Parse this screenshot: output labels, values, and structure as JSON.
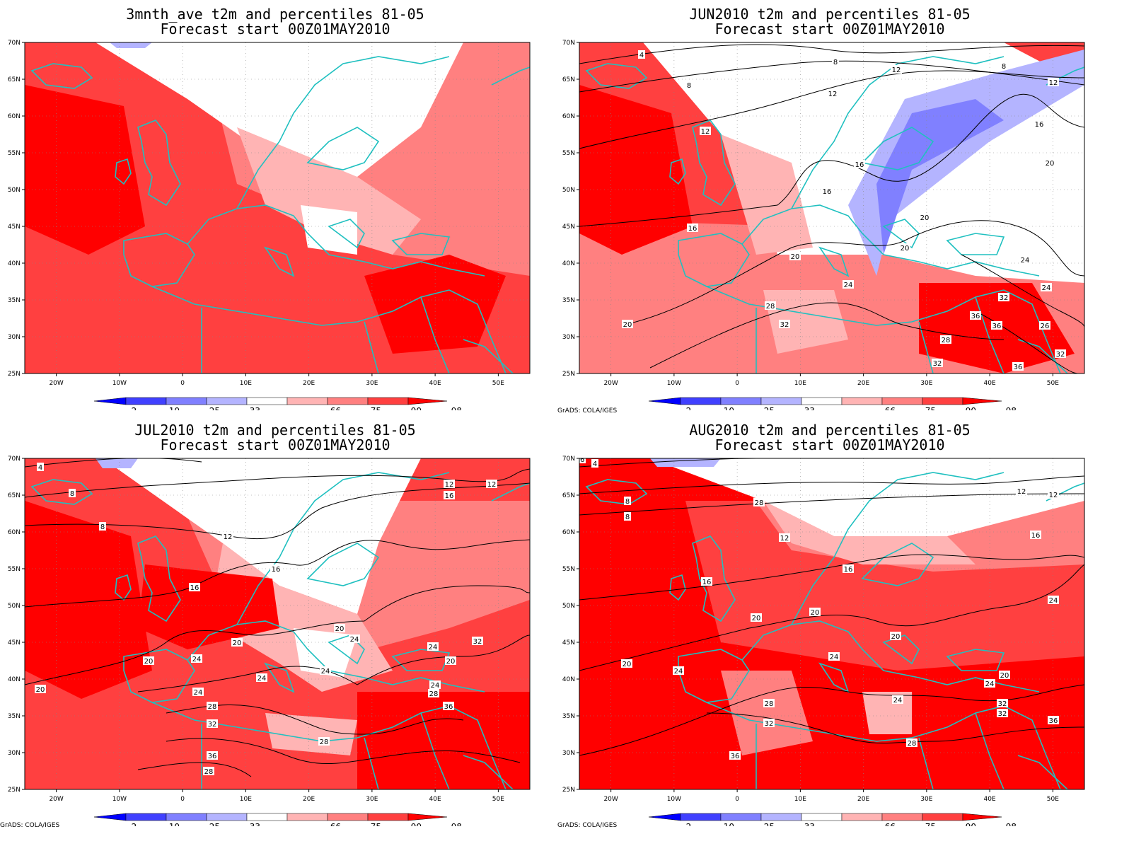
{
  "panels": [
    {
      "id": "p1",
      "title_line1": "3mnth_ave t2m and percentiles 81-05",
      "title_line2": "Forecast start 00Z01MAY2010",
      "credit": "",
      "has_contours": false
    },
    {
      "id": "p2",
      "title_line1": "JUN2010 t2m and percentiles 81-05",
      "title_line2": "Forecast start 00Z01MAY2010",
      "credit": "GrADS: COLA/IGES",
      "has_contours": true,
      "contour_labels": [
        "4",
        "8",
        "8",
        "8",
        "12",
        "12",
        "12",
        "12",
        "16",
        "16",
        "16",
        "16",
        "20",
        "20",
        "20",
        "20",
        "20",
        "24",
        "24",
        "24",
        "28",
        "28",
        "26",
        "32",
        "32",
        "32",
        "32",
        "36",
        "36",
        "36"
      ]
    },
    {
      "id": "p3",
      "title_line1": "JUL2010 t2m and percentiles 81-05",
      "title_line2": "Forecast start 00Z01MAY2010",
      "credit": "GrADS: COLA/IGES",
      "has_contours": true,
      "contour_labels": [
        "4",
        "8",
        "8",
        "12",
        "12",
        "12",
        "16",
        "16",
        "16",
        "20",
        "20",
        "20",
        "20",
        "20",
        "24",
        "24",
        "24",
        "24",
        "24",
        "24",
        "24",
        "28",
        "28",
        "28",
        "28",
        "32",
        "32",
        "36",
        "36"
      ]
    },
    {
      "id": "p4",
      "title_line1": "AUG2010 t2m and percentiles 81-05",
      "title_line2": "Forecast start 00Z01MAY2010",
      "credit": "GrADS: COLA/IGES",
      "has_contours": true,
      "contour_labels": [
        "4",
        "8",
        "8",
        "12",
        "12",
        "12",
        "16",
        "16",
        "16",
        "16",
        "20",
        "20",
        "20",
        "20",
        "20",
        "24",
        "24",
        "24",
        "24",
        "24",
        "28",
        "28",
        "28",
        "32",
        "32",
        "32",
        "36",
        "36"
      ]
    }
  ],
  "axes": {
    "x_ticks": [
      "20W",
      "10W",
      "0",
      "10E",
      "20E",
      "30E",
      "40E",
      "50E"
    ],
    "y_ticks": [
      "70N",
      "65N",
      "60N",
      "55N",
      "50N",
      "45N",
      "40N",
      "35N",
      "30N",
      "25N"
    ]
  },
  "colorbar": {
    "labels": [
      "2",
      "10",
      "25",
      "33",
      "66",
      "75",
      "90",
      "98"
    ],
    "colors": [
      "#0000ff",
      "#4040ff",
      "#8080ff",
      "#b4b4ff",
      "#ffffff",
      "#ffb4b4",
      "#ff8080",
      "#ff4040",
      "#ff0000"
    ]
  }
}
